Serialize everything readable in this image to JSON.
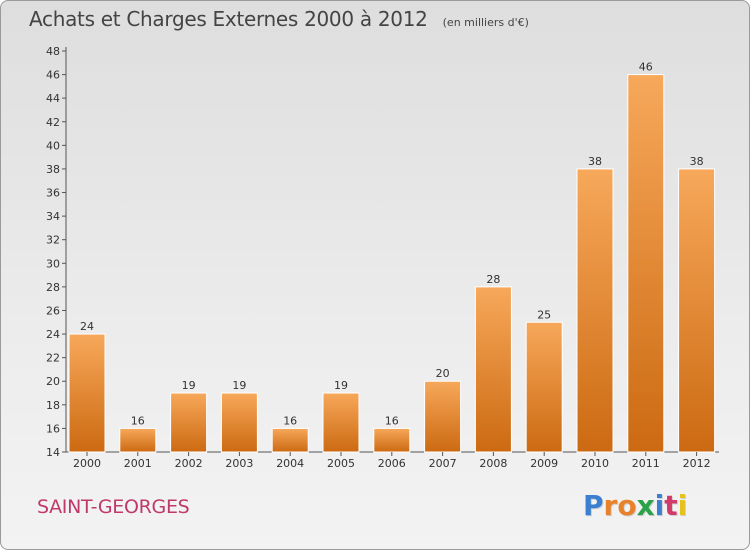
{
  "title": "Achats et Charges Externes 2000 à 2012",
  "subtitle": "(en milliers d'€)",
  "commune": "SAINT-GEORGES",
  "logo": {
    "letters": [
      "P",
      "r",
      "o",
      "x",
      "i",
      "t",
      "i"
    ],
    "colors": [
      "#3a7fd0",
      "#e8822a",
      "#e8822a",
      "#2aa24a",
      "#3a7fd0",
      "#d23a6a",
      "#e8c21a"
    ]
  },
  "colors": {
    "bar_light": "#f7a85a",
    "bar_dark": "#cc6a12",
    "commune_text": "#c0396b"
  },
  "chart_data": {
    "type": "bar",
    "title": "Achats et Charges Externes 2000 à 2012",
    "subtitle": "(en milliers d'€)",
    "categories": [
      "2000",
      "2001",
      "2002",
      "2003",
      "2004",
      "2005",
      "2006",
      "2007",
      "2008",
      "2009",
      "2010",
      "2011",
      "2012"
    ],
    "values": [
      24,
      16,
      19,
      19,
      16,
      19,
      16,
      20,
      28,
      25,
      38,
      46,
      38
    ],
    "ylim": [
      14,
      48
    ],
    "yticks": [
      14,
      16,
      18,
      20,
      22,
      24,
      26,
      28,
      30,
      32,
      34,
      36,
      38,
      40,
      42,
      44,
      46,
      48
    ],
    "grid": false,
    "data_labels": true
  }
}
